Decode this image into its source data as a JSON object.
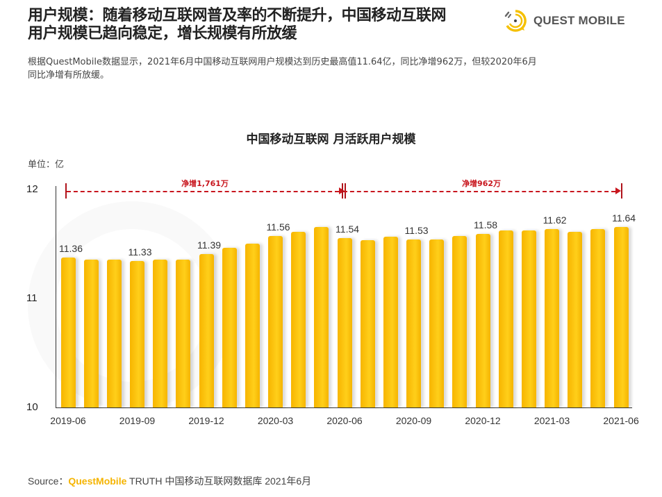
{
  "header": {
    "title_line1": "用户规模：随着移动互联网普及率的不断提升，中国移动互联网",
    "title_line2": "用户规模已趋向稳定，增长规模有所放缓",
    "logo_text": "QUEST MOBILE",
    "logo_icon": "quest-mobile-logo-icon",
    "brand_color": "#f5c000"
  },
  "description": {
    "line1": "根据QuestMobile数据显示，2021年6月中国移动互联网用户规模达到历史最高值11.64亿，同比净增962万，但较2020年6月",
    "line2": "同比净增有所放缓。"
  },
  "chart_data": {
    "type": "bar",
    "title": "中国移动互联网 月活跃用户规模",
    "unit_label": "单位：亿",
    "xlabel": "",
    "ylabel": "亿",
    "ylim": [
      10,
      12
    ],
    "yticks": [
      "10",
      "11",
      "12"
    ],
    "grid": false,
    "legend": null,
    "bar_color": "#ffc61a",
    "categories": [
      "2019-06",
      "2019-07",
      "2019-08",
      "2019-09",
      "2019-10",
      "2019-11",
      "2019-12",
      "2020-01",
      "2020-02",
      "2020-03",
      "2020-04",
      "2020-05",
      "2020-06",
      "2020-07",
      "2020-08",
      "2020-09",
      "2020-10",
      "2020-11",
      "2020-12",
      "2021-01",
      "2021-02",
      "2021-03",
      "2021-04",
      "2021-05",
      "2021-06"
    ],
    "values": [
      11.36,
      11.34,
      11.34,
      11.33,
      11.34,
      11.34,
      11.39,
      11.45,
      11.49,
      11.56,
      11.6,
      11.64,
      11.54,
      11.52,
      11.55,
      11.53,
      11.53,
      11.56,
      11.58,
      11.61,
      11.61,
      11.62,
      11.6,
      11.62,
      11.64
    ],
    "data_labels": [
      {
        "index": 0,
        "text": "11.36"
      },
      {
        "index": 3,
        "text": "11.33"
      },
      {
        "index": 6,
        "text": "11.39"
      },
      {
        "index": 9,
        "text": "11.56"
      },
      {
        "index": 12,
        "text": "11.54"
      },
      {
        "index": 15,
        "text": "11.53"
      },
      {
        "index": 18,
        "text": "11.58"
      },
      {
        "index": 21,
        "text": "11.62"
      },
      {
        "index": 24,
        "text": "11.64"
      }
    ],
    "xtick_labels": [
      {
        "index": 0,
        "text": "2019-06"
      },
      {
        "index": 3,
        "text": "2019-09"
      },
      {
        "index": 6,
        "text": "2019-12"
      },
      {
        "index": 9,
        "text": "2020-03"
      },
      {
        "index": 12,
        "text": "2020-06"
      },
      {
        "index": 15,
        "text": "2020-09"
      },
      {
        "index": 18,
        "text": "2020-12"
      },
      {
        "index": 21,
        "text": "2021-03"
      },
      {
        "index": 24,
        "text": "2021-06"
      }
    ],
    "annotations": [
      {
        "from_index": 0,
        "to_index": 12,
        "text": "净增1,761万",
        "color": "#c8161e"
      },
      {
        "from_index": 12,
        "to_index": 24,
        "text": "净增962万",
        "color": "#c8161e"
      }
    ]
  },
  "footer": {
    "source_prefix": "Source：",
    "source_brand": "QuestMobile",
    "source_rest": " TRUTH 中国移动互联网数据库 2021年6月"
  }
}
